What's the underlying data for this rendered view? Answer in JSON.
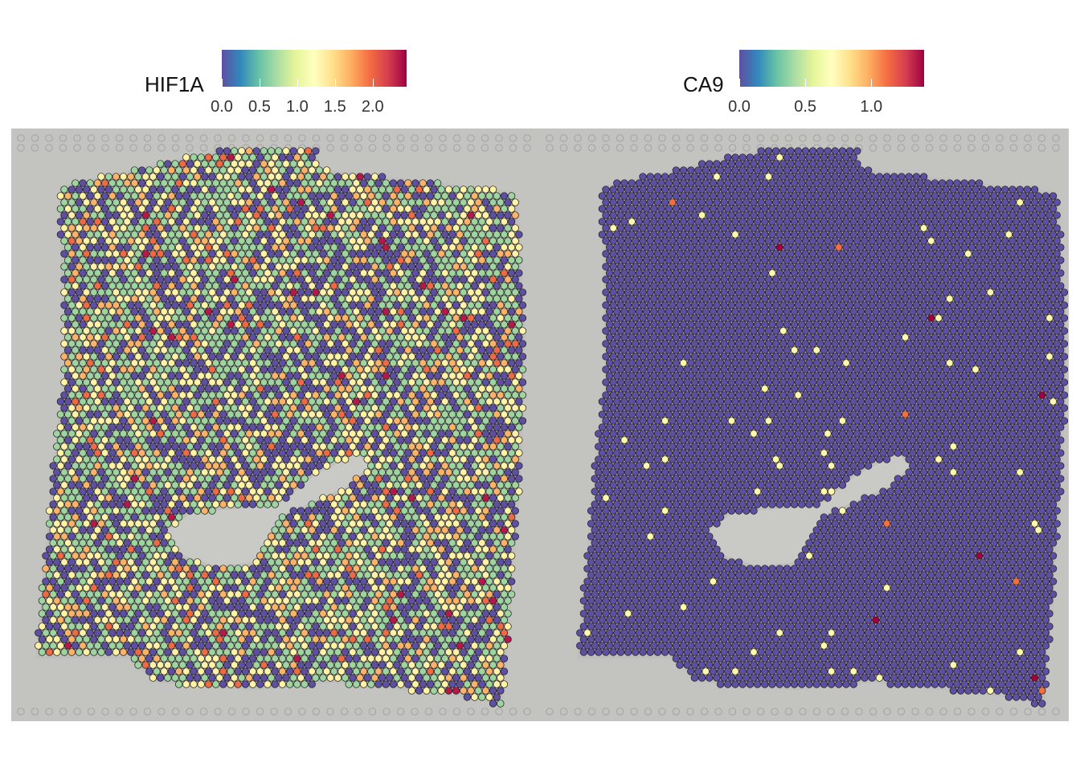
{
  "panels": [
    {
      "legend": {
        "title": "HIF1A",
        "ticks": [
          "0.0",
          "0.5",
          "1.0",
          "1.5",
          "2.0"
        ],
        "tick_values": [
          0.0,
          0.5,
          1.0,
          1.5,
          2.0
        ],
        "range": [
          0.0,
          2.45
        ]
      },
      "profile": "hif1a"
    },
    {
      "legend": {
        "title": "CA9",
        "ticks": [
          "0.0",
          "0.5",
          "1.0"
        ],
        "tick_values": [
          0.0,
          0.5,
          1.0
        ],
        "range": [
          0.0,
          1.4
        ]
      },
      "profile": "ca9"
    }
  ],
  "colors": {
    "palette": [
      "#5E4FA2",
      "#3288BD",
      "#66C2A5",
      "#ABDDA4",
      "#E6F598",
      "#FFFFBF",
      "#FEE08B",
      "#FDAE61",
      "#F46D43",
      "#D53E4F",
      "#9E0142"
    ],
    "background_tissue": "#c3c3c0",
    "spot_outline": "#1a1a1a"
  }
}
